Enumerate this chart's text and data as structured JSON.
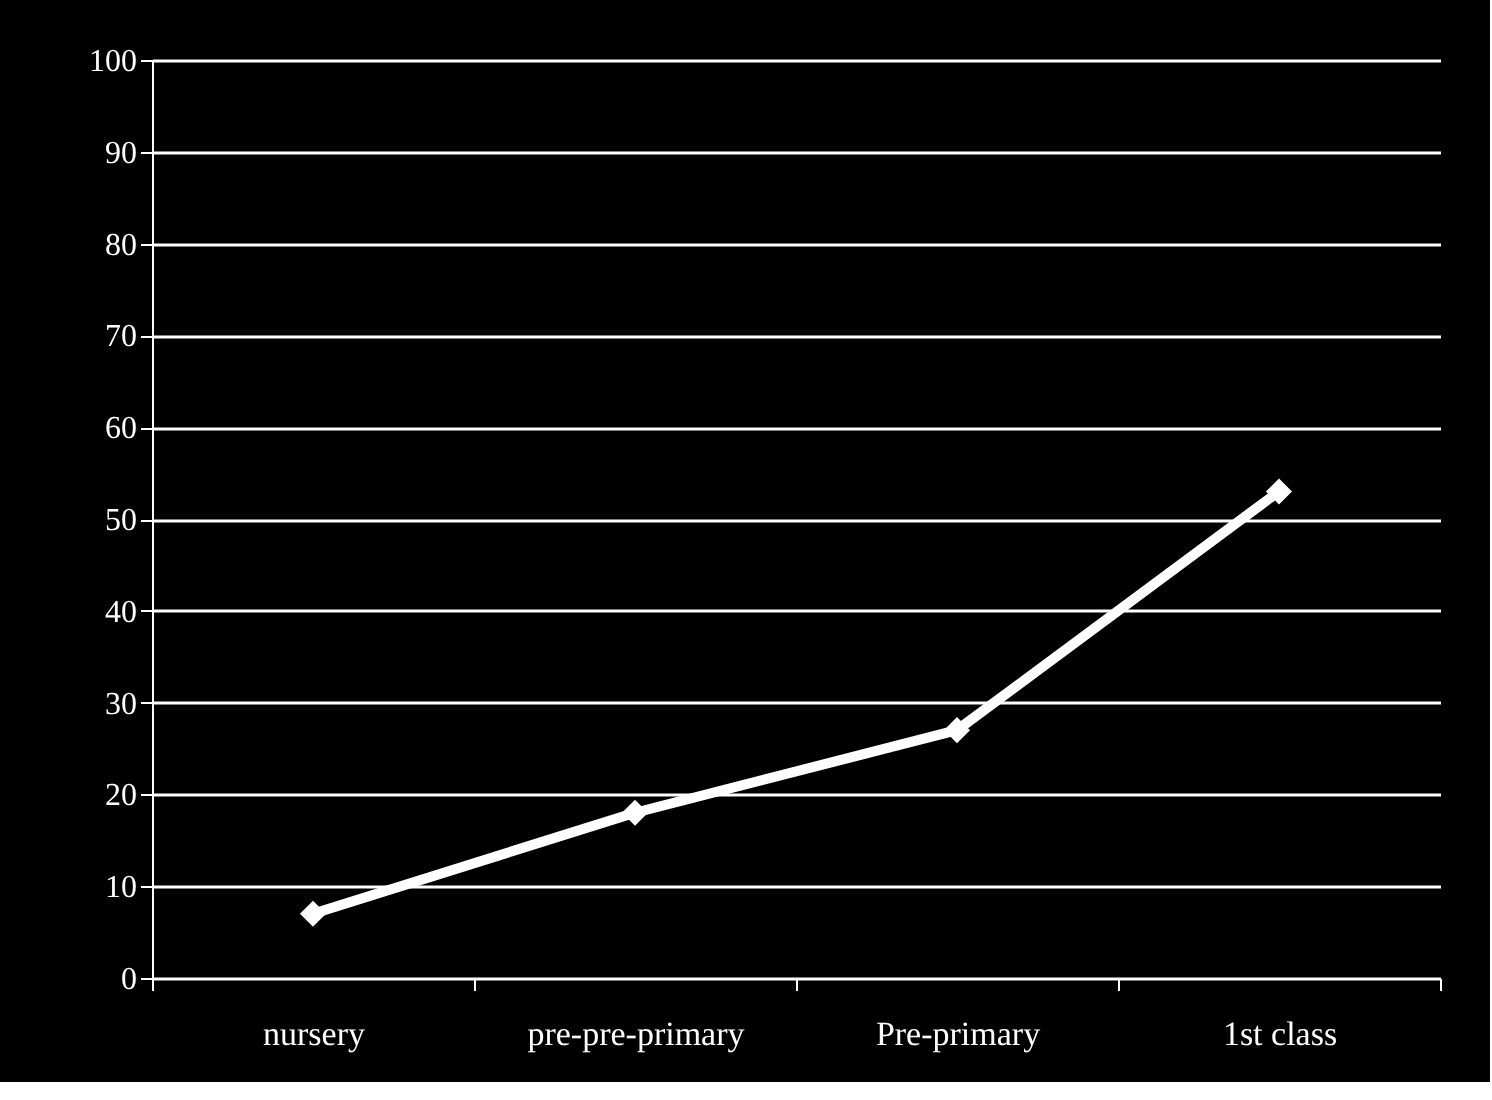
{
  "chart_data": {
    "type": "line",
    "categories": [
      "nursery",
      "pre-pre-primary",
      "Pre-primary",
      "1st class"
    ],
    "series": [
      {
        "color": "#ffffff",
        "values": [
          7,
          18,
          27,
          53
        ]
      }
    ],
    "ylim": [
      0,
      100
    ],
    "yticks": [
      0,
      10,
      20,
      30,
      40,
      50,
      60,
      70,
      80,
      90,
      100
    ],
    "grid": "y",
    "marker": "diamond",
    "line_style": "solid"
  }
}
